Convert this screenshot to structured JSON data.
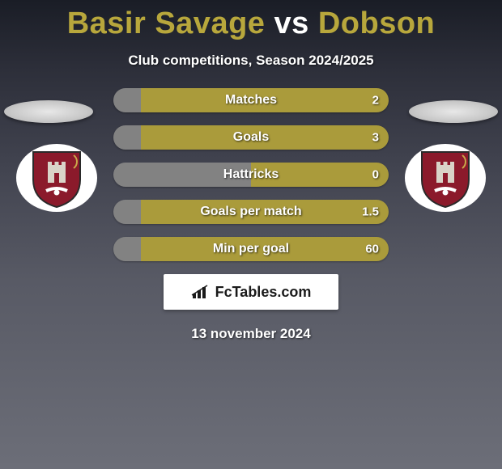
{
  "title_parts": [
    {
      "text": "Basir Savage",
      "color": "#b8a73c"
    },
    {
      "text": " vs ",
      "color": "#ffffff"
    },
    {
      "text": "Dobson",
      "color": "#b8a73c"
    }
  ],
  "subtitle": "Club competitions, Season 2024/2025",
  "colors": {
    "bar_left": "#828282",
    "bar_right": "#aa9b3b",
    "text_shadow": "rgba(0,0,0,0.7)"
  },
  "stats": [
    {
      "label": "Matches",
      "left_val": "",
      "right_val": "2",
      "left_pct": 10
    },
    {
      "label": "Goals",
      "left_val": "",
      "right_val": "3",
      "left_pct": 10
    },
    {
      "label": "Hattricks",
      "left_val": "",
      "right_val": "0",
      "left_pct": 50
    },
    {
      "label": "Goals per match",
      "left_val": "",
      "right_val": "1.5",
      "left_pct": 10
    },
    {
      "label": "Min per goal",
      "left_val": "",
      "right_val": "60",
      "left_pct": 10
    }
  ],
  "logo_text": "FcTables.com",
  "date": "13 november 2024",
  "badge": {
    "shield_fill": "#8b1a2b",
    "shield_stroke": "#2a2a2a",
    "castle_fill": "#d9d4c8",
    "accent": "#c9a84a"
  }
}
